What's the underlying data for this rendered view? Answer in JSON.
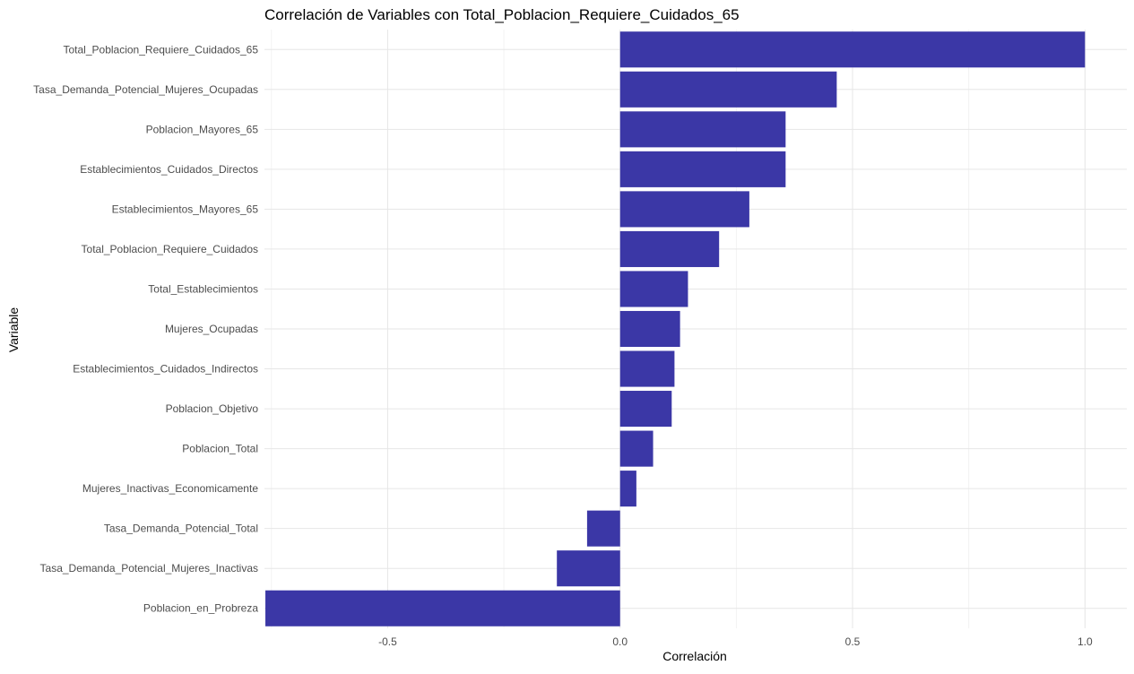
{
  "chart_data": {
    "type": "bar",
    "orientation": "horizontal",
    "title": "Correlación de Variables con Total_Poblacion_Requiere_Cuidados_65",
    "xlabel": "Correlación",
    "ylabel": "Variable",
    "xlim": [
      -0.765,
      1.09
    ],
    "x_ticks": [
      -0.5,
      0.0,
      0.5,
      1.0
    ],
    "x_tick_labels": [
      "-0.5",
      "0.0",
      "0.5",
      "1.0"
    ],
    "grid": true,
    "legend": "none",
    "bar_color": "#3B37A6",
    "categories": [
      "Total_Poblacion_Requiere_Cuidados_65",
      "Tasa_Demanda_Potencial_Mujeres_Ocupadas",
      "Poblacion_Mayores_65",
      "Establecimientos_Cuidados_Directos",
      "Establecimientos_Mayores_65",
      "Total_Poblacion_Requiere_Cuidados",
      "Total_Establecimientos",
      "Mujeres_Ocupadas",
      "Establecimientos_Cuidados_Indirectos",
      "Poblacion_Objetivo",
      "Poblacion_Total",
      "Mujeres_Inactivas_Economicamente",
      "Tasa_Demanda_Potencial_Total",
      "Tasa_Demanda_Potencial_Mujeres_Inactivas",
      "Poblacion_en_Probreza"
    ],
    "values": [
      1.0,
      0.466,
      0.356,
      0.356,
      0.278,
      0.213,
      0.146,
      0.129,
      0.117,
      0.111,
      0.071,
      0.035,
      -0.071,
      -0.136,
      -0.763
    ]
  }
}
